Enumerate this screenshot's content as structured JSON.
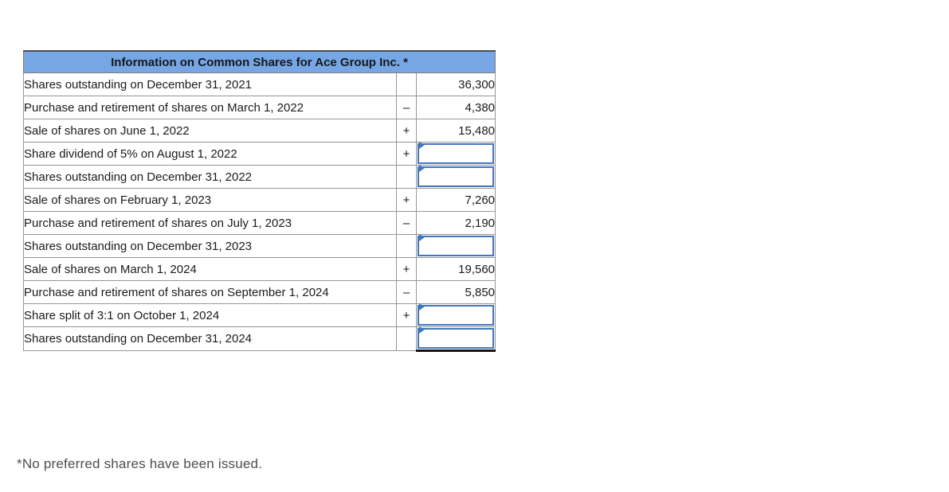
{
  "table": {
    "title": "Information on Common Shares for Ace Group Inc. *",
    "header_bg": "#76A6E4",
    "input_border_color": "#4377BD",
    "rows": [
      {
        "label": "Shares outstanding on December 31, 2021",
        "sign": "",
        "value": "36,300",
        "input": false
      },
      {
        "label": "Purchase and retirement of shares on March 1, 2022",
        "sign": "–",
        "value": "4,380",
        "input": false
      },
      {
        "label": "Sale of shares on June 1, 2022",
        "sign": "+",
        "value": "15,480",
        "input": false
      },
      {
        "label": "Share dividend of 5% on August 1, 2022",
        "sign": "+",
        "value": "",
        "input": true
      },
      {
        "label": "Shares outstanding on December 31, 2022",
        "sign": "",
        "value": "",
        "input": true
      },
      {
        "label": "Sale of shares on February 1, 2023",
        "sign": "+",
        "value": "7,260",
        "input": false
      },
      {
        "label": "Purchase and retirement of shares on July 1, 2023",
        "sign": "–",
        "value": "2,190",
        "input": false
      },
      {
        "label": "Shares outstanding on December 31, 2023",
        "sign": "",
        "value": "",
        "input": true
      },
      {
        "label": "Sale of shares on March 1, 2024",
        "sign": "+",
        "value": "19,560",
        "input": false
      },
      {
        "label": "Purchase and retirement of shares on September 1, 2024",
        "sign": "–",
        "value": "5,850",
        "input": false
      },
      {
        "label": "Share split of 3:1 on October 1, 2024",
        "sign": "+",
        "value": "",
        "input": true
      },
      {
        "label": "Shares outstanding on December 31, 2024",
        "sign": "",
        "value": "",
        "input": true
      }
    ]
  },
  "footnote": "*No preferred shares have been issued."
}
